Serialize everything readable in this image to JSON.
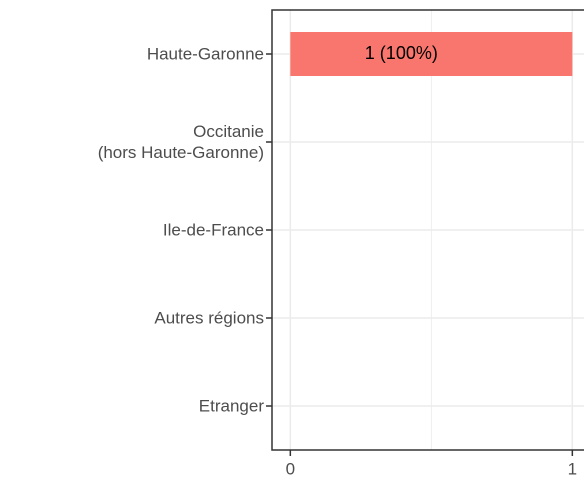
{
  "chart_data": {
    "type": "barh",
    "categories": [
      "Haute-Garonne",
      "Occitanie\n(hors Haute-Garonne)",
      "Ile-de-France",
      "Autres régions",
      "Etranger"
    ],
    "values": [
      1,
      0,
      0,
      0,
      0
    ],
    "value_labels": [
      "1 (100%)",
      null,
      null,
      null,
      null
    ],
    "color": "#f8766d",
    "xlim": [
      -0.065,
      1.05
    ],
    "xticks": [
      0,
      1
    ],
    "x_minor_ticks": [
      0.5
    ],
    "grid": true
  }
}
